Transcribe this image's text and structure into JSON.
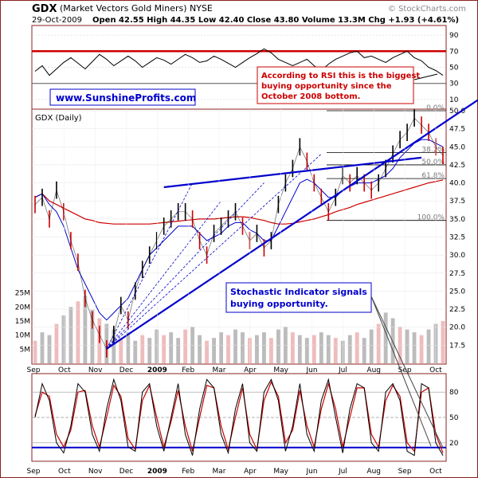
{
  "header": {
    "symbol": "GDX",
    "name": "(Market Vectors Gold Miners) NYSE",
    "source": "© StockCharts.com",
    "date": "29-Oct-2009",
    "quote": "Open 42.55  High 44.35  Low 42.40  Close 43.80  Volume 13.3M  Chg +1.93 (+4.61%)"
  },
  "colors": {
    "frame": "#8b2020",
    "red": "#cc0000",
    "blue": "#0000cc",
    "gray": "#a0a0a0",
    "background": "#ffffff"
  },
  "annotations": {
    "website": "www.SunshineProfits.com",
    "rsi_note": [
      "According to RSI this is the biggest",
      "buying opportunity since the",
      "October 2008 bottom."
    ],
    "stoch_note": [
      "Stochastic Indicator signals",
      "buying opportunity."
    ]
  },
  "chart_data": [
    {
      "type": "line",
      "panel": "rsi",
      "ylim": [
        0,
        100
      ],
      "yticks": [
        10,
        30,
        50,
        70,
        90
      ],
      "reference_lines": [
        30,
        70
      ],
      "series": [
        {
          "values": [
            45,
            52,
            40,
            48,
            56,
            62,
            55,
            48,
            57,
            66,
            60,
            52,
            58,
            64,
            58,
            50,
            56,
            62,
            59,
            54,
            60,
            66,
            62,
            56,
            58,
            64,
            60,
            55,
            50,
            56,
            62,
            67,
            73,
            68,
            60,
            56,
            52,
            56,
            60,
            52,
            46,
            54,
            60,
            64,
            68,
            70,
            62,
            64,
            60,
            56,
            62,
            66,
            70,
            62,
            58,
            50,
            46,
            40
          ]
        }
      ]
    },
    {
      "type": "line",
      "panel": "price",
      "title": "GDX (Daily)",
      "ylim": [
        15,
        50
      ],
      "yticks": [
        17.5,
        20.0,
        22.5,
        25.0,
        27.5,
        30.0,
        32.5,
        35.0,
        37.5,
        40.0,
        42.5,
        45.0,
        47.5,
        50.0
      ],
      "xticks": [
        "Sep",
        "Oct",
        "Nov",
        "Dec",
        "2009",
        "Feb",
        "Mar",
        "Apr",
        "May",
        "Jun",
        "Jul",
        "Aug",
        "Sep",
        "Oct"
      ],
      "fib_labels": [
        "0.0%",
        "38.2%",
        "50.0%",
        "61.8%",
        "100.0%"
      ],
      "fib_levels": [
        50.0,
        44.2,
        42.5,
        40.6,
        34.8
      ],
      "series": [
        {
          "values": [
            37,
            38,
            35,
            39,
            36,
            32,
            29,
            24,
            21,
            19,
            17,
            19,
            23,
            21,
            25,
            28,
            30,
            32,
            34,
            35,
            36,
            36,
            35,
            32,
            30,
            33,
            34,
            35,
            36,
            34,
            32,
            33,
            31,
            32,
            37,
            40,
            42,
            45,
            43,
            40,
            38,
            36,
            38,
            41,
            40,
            41,
            40,
            39,
            40,
            42,
            44,
            46,
            47,
            49,
            48,
            47,
            45,
            43.8
          ]
        },
        {
          "values": [
            38,
            38.5,
            37,
            36,
            34,
            31,
            28,
            26,
            24,
            22,
            21,
            22,
            23,
            24,
            26,
            28,
            30,
            31,
            32,
            33,
            34,
            34,
            34,
            33,
            32,
            32.5,
            33,
            34,
            34.5,
            34.5,
            33.5,
            33,
            32,
            32,
            34,
            36,
            38,
            40,
            40.5,
            40,
            39,
            38,
            38,
            39,
            39.5,
            40,
            40,
            40,
            40.5,
            41,
            42,
            43.5,
            44.5,
            45.5,
            46,
            46,
            45.5,
            45
          ]
        },
        {
          "values": [
            38,
            38.5,
            37.5,
            37,
            36.5,
            36,
            35.5,
            35,
            34.8,
            34.5,
            34.4,
            34.3,
            34.3,
            34.3,
            34.3,
            34.3,
            34.3,
            34.4,
            34.5,
            34.6,
            34.7,
            34.8,
            34.9,
            35,
            35,
            35,
            35.1,
            35.2,
            35.3,
            35.3,
            35.2,
            35,
            34.8,
            34.5,
            34.3,
            34.3,
            34.4,
            34.6,
            34.8,
            35,
            35.3,
            35.6,
            36,
            36.3,
            36.6,
            37,
            37.3,
            37.6,
            37.9,
            38.2,
            38.5,
            38.8,
            39.1,
            39.4,
            39.7,
            40,
            40.2,
            40.4
          ]
        }
      ]
    },
    {
      "type": "bar",
      "panel": "volume",
      "ylim": [
        0,
        30
      ],
      "yticks": [
        "5M",
        "10M",
        "15M",
        "20M",
        "25M"
      ],
      "values": [
        8,
        11,
        10,
        14,
        17,
        20,
        22,
        24,
        19,
        16,
        14,
        12,
        9,
        11,
        8,
        10,
        9,
        12,
        10,
        11,
        9,
        12,
        13,
        10,
        8,
        9,
        11,
        10,
        12,
        11,
        9,
        10,
        11,
        9,
        12,
        13,
        11,
        10,
        9,
        10,
        11,
        10,
        9,
        8,
        10,
        11,
        9,
        12,
        14,
        18,
        16,
        13,
        12,
        11,
        10,
        12,
        14,
        15
      ]
    },
    {
      "type": "line",
      "panel": "stochastic",
      "ylim": [
        0,
        100
      ],
      "yticks": [
        20,
        50,
        80
      ],
      "reference_lines": [
        20,
        50,
        80
      ],
      "series": [
        {
          "values": [
            50,
            90,
            70,
            20,
            8,
            40,
            90,
            80,
            30,
            10,
            60,
            95,
            70,
            15,
            10,
            80,
            90,
            40,
            10,
            50,
            90,
            30,
            5,
            60,
            95,
            85,
            30,
            8,
            60,
            90,
            20,
            10,
            80,
            95,
            70,
            10,
            40,
            90,
            30,
            10,
            70,
            95,
            50,
            8,
            60,
            90,
            85,
            20,
            10,
            80,
            90,
            70,
            10,
            5,
            90,
            85,
            20,
            5
          ]
        },
        {
          "values": [
            52,
            80,
            75,
            30,
            15,
            35,
            80,
            82,
            40,
            15,
            50,
            88,
            75,
            25,
            12,
            70,
            88,
            50,
            15,
            45,
            82,
            40,
            10,
            50,
            88,
            85,
            40,
            12,
            50,
            85,
            30,
            12,
            70,
            92,
            75,
            20,
            35,
            82,
            40,
            15,
            60,
            90,
            60,
            15,
            50,
            85,
            85,
            30,
            15,
            70,
            88,
            75,
            20,
            10,
            80,
            85,
            30,
            8
          ]
        }
      ]
    }
  ]
}
